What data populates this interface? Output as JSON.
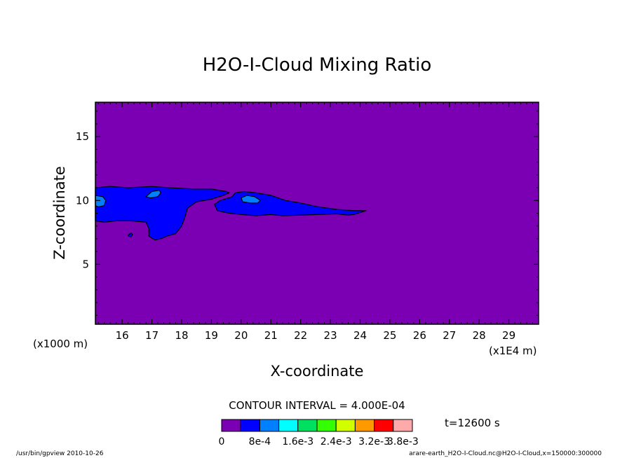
{
  "chart_data": {
    "type": "heatmap",
    "title": "H2O-I-Cloud Mixing Ratio",
    "xlabel": "X-coordinate",
    "ylabel": "Z-coordinate",
    "x_unit": "(x1E4 m)",
    "y_unit": "(x1000 m)",
    "xlim": [
      15.1,
      30.0
    ],
    "ylim": [
      0.3,
      17.7
    ],
    "x_ticks": [
      16,
      17,
      18,
      19,
      20,
      21,
      22,
      23,
      24,
      25,
      26,
      27,
      28,
      29
    ],
    "y_ticks": [
      5,
      10,
      15
    ],
    "contour_interval_label": "CONTOUR INTERVAL = 4.000E-04",
    "time_label": "t=12600 s",
    "levels": [
      0,
      0.0004,
      0.0008,
      0.0012,
      0.0016,
      0.002,
      0.0024,
      0.0028,
      0.0032,
      0.0036,
      0.004
    ],
    "colors": [
      "#7b00b4",
      "#0000ff",
      "#0080ff",
      "#00ffff",
      "#00e060",
      "#33ff00",
      "#d2ff00",
      "#ff9900",
      "#ff0000",
      "#ffaaaa"
    ],
    "colorbar_labels": [
      "0",
      "8e-4",
      "1.6e-3",
      "2.4e-3",
      "3.2e-3",
      "3.8e-3"
    ],
    "colorbar_label_levels": [
      0,
      0.0008,
      0.0016,
      0.0024,
      0.0032,
      0.0038
    ],
    "regions": [
      {
        "level": 0.0004,
        "points": [
          [
            15.1,
            11.0
          ],
          [
            15.6,
            11.1
          ],
          [
            16.2,
            11.0
          ],
          [
            17.0,
            11.1
          ],
          [
            17.6,
            11.0
          ],
          [
            18.4,
            10.9
          ],
          [
            19.0,
            10.9
          ],
          [
            19.5,
            10.7
          ],
          [
            19.6,
            10.6
          ],
          [
            19.4,
            10.4
          ],
          [
            19.0,
            10.1
          ],
          [
            18.5,
            9.9
          ],
          [
            18.2,
            9.4
          ],
          [
            18.1,
            8.6
          ],
          [
            18.0,
            8.0
          ],
          [
            17.8,
            7.4
          ],
          [
            17.5,
            7.2
          ],
          [
            17.3,
            7.0
          ],
          [
            17.1,
            6.9
          ],
          [
            16.9,
            7.2
          ],
          [
            16.9,
            7.8
          ],
          [
            16.8,
            8.3
          ],
          [
            16.3,
            8.4
          ],
          [
            15.8,
            8.4
          ],
          [
            15.4,
            8.3
          ],
          [
            15.1,
            8.4
          ]
        ]
      },
      {
        "level": 0.0004,
        "points": [
          [
            19.1,
            9.7
          ],
          [
            19.3,
            10.0
          ],
          [
            19.7,
            10.3
          ],
          [
            19.8,
            10.6
          ],
          [
            20.1,
            10.7
          ],
          [
            20.5,
            10.6
          ],
          [
            21.0,
            10.4
          ],
          [
            21.5,
            10.0
          ],
          [
            22.0,
            9.8
          ],
          [
            22.6,
            9.5
          ],
          [
            23.2,
            9.3
          ],
          [
            23.8,
            9.2
          ],
          [
            24.2,
            9.2
          ],
          [
            24.0,
            9.05
          ],
          [
            23.8,
            8.9
          ],
          [
            23.6,
            8.85
          ],
          [
            23.2,
            8.95
          ],
          [
            22.6,
            8.9
          ],
          [
            22.0,
            8.85
          ],
          [
            21.4,
            8.8
          ],
          [
            21.0,
            8.9
          ],
          [
            20.5,
            8.8
          ],
          [
            20.0,
            8.9
          ],
          [
            19.6,
            9.0
          ],
          [
            19.2,
            9.2
          ]
        ]
      },
      {
        "level": 0.0004,
        "points": [
          [
            16.2,
            7.3
          ],
          [
            16.3,
            7.45
          ],
          [
            16.35,
            7.35
          ],
          [
            16.3,
            7.15
          ],
          [
            16.22,
            7.2
          ]
        ]
      },
      {
        "level": 0.0008,
        "points": [
          [
            15.1,
            10.4
          ],
          [
            15.35,
            10.3
          ],
          [
            15.45,
            10.0
          ],
          [
            15.4,
            9.6
          ],
          [
            15.2,
            9.5
          ],
          [
            15.1,
            9.6
          ]
        ]
      },
      {
        "level": 0.0008,
        "points": [
          [
            16.8,
            10.3
          ],
          [
            17.0,
            10.7
          ],
          [
            17.25,
            10.8
          ],
          [
            17.3,
            10.6
          ],
          [
            17.2,
            10.3
          ],
          [
            16.95,
            10.2
          ]
        ]
      },
      {
        "level": 0.0008,
        "points": [
          [
            20.0,
            10.2
          ],
          [
            20.2,
            10.4
          ],
          [
            20.45,
            10.3
          ],
          [
            20.65,
            10.0
          ],
          [
            20.55,
            9.8
          ],
          [
            20.3,
            9.8
          ],
          [
            20.05,
            9.9
          ]
        ]
      }
    ]
  },
  "footer": {
    "left": "/usr/bin/gpview  2010-10-26",
    "right": "arare-earth_H2O-I-Cloud.nc@H2O-I-Cloud,x=150000:300000"
  }
}
